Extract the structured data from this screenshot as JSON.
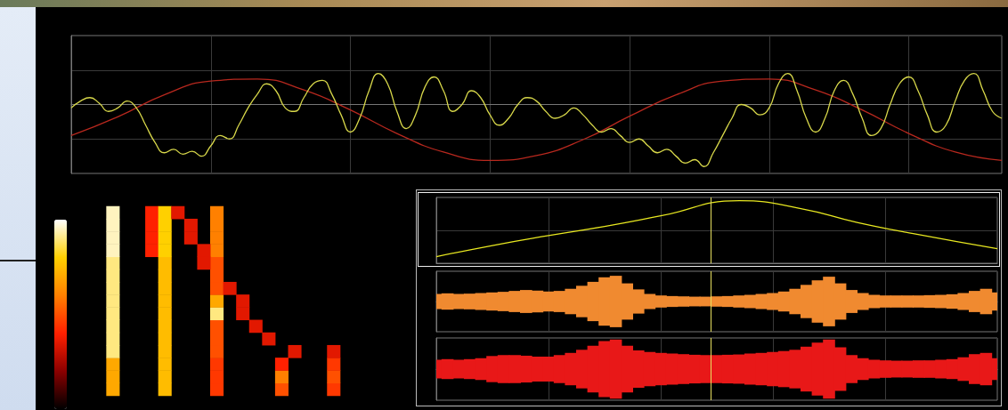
{
  "chart_data": [
    {
      "type": "line",
      "grid": true,
      "tick_labels": false,
      "xlim": [
        0,
        100
      ],
      "xticks": [
        0,
        15,
        30,
        45,
        60,
        75,
        90
      ],
      "ylim": [
        -1,
        1
      ],
      "yticks": [
        -1,
        -0.5,
        0,
        0.5,
        1
      ],
      "series": [
        {
          "color": "#b8281e",
          "x": [
            0,
            5,
            10,
            15,
            20,
            25,
            30,
            35,
            40,
            45,
            50,
            55,
            60,
            65,
            70,
            75,
            80,
            85,
            90,
            95,
            100
          ],
          "values": [
            -0.45,
            -0.18,
            0.14,
            0.34,
            0.37,
            0.21,
            -0.08,
            -0.42,
            -0.69,
            -0.81,
            -0.74,
            -0.51,
            -0.17,
            0.14,
            0.34,
            0.37,
            0.21,
            -0.08,
            -0.42,
            -0.69,
            -0.81
          ]
        },
        {
          "color": "#d8d84a",
          "x": [
            0,
            1,
            2,
            3,
            4,
            5,
            6,
            7,
            8,
            9,
            10,
            11,
            12,
            13,
            14,
            15,
            16,
            17,
            18,
            19,
            20,
            21,
            22,
            23,
            24,
            25,
            26,
            27,
            28,
            29,
            30,
            31,
            32,
            33,
            34,
            35,
            36,
            37,
            38,
            39,
            40,
            41,
            42,
            43,
            44,
            45,
            46,
            47,
            48,
            49,
            50,
            51,
            52,
            53,
            54,
            55,
            56,
            57,
            58,
            59,
            60,
            61,
            62,
            63,
            64,
            65,
            66,
            67,
            68,
            69,
            70,
            71,
            72,
            73,
            74,
            75,
            76,
            77,
            78,
            79,
            80,
            81,
            82,
            83,
            84,
            85,
            86,
            87,
            88,
            89,
            90,
            91,
            92,
            93,
            94,
            95,
            96,
            97,
            98,
            99,
            100
          ],
          "values": [
            -0.05,
            0.05,
            0.1,
            0.02,
            -0.1,
            -0.05,
            0.05,
            -0.05,
            -0.3,
            -0.55,
            -0.7,
            -0.65,
            -0.72,
            -0.68,
            -0.75,
            -0.6,
            -0.45,
            -0.5,
            -0.3,
            -0.05,
            0.15,
            0.3,
            0.2,
            -0.05,
            -0.1,
            0.1,
            0.3,
            0.35,
            0.15,
            -0.15,
            -0.4,
            -0.2,
            0.2,
            0.45,
            0.3,
            -0.1,
            -0.35,
            -0.15,
            0.25,
            0.4,
            0.2,
            -0.1,
            0.0,
            0.2,
            0.1,
            -0.15,
            -0.3,
            -0.2,
            0.0,
            0.1,
            0.05,
            -0.1,
            -0.2,
            -0.15,
            -0.05,
            -0.15,
            -0.3,
            -0.4,
            -0.35,
            -0.45,
            -0.55,
            -0.5,
            -0.6,
            -0.7,
            -0.65,
            -0.75,
            -0.85,
            -0.8,
            -0.9,
            -0.7,
            -0.45,
            -0.2,
            0.0,
            -0.05,
            -0.15,
            -0.05,
            0.3,
            0.45,
            0.2,
            -0.2,
            -0.4,
            -0.2,
            0.2,
            0.35,
            0.15,
            -0.2,
            -0.45,
            -0.35,
            0.0,
            0.3,
            0.4,
            0.2,
            -0.15,
            -0.4,
            -0.3,
            0.05,
            0.35,
            0.45,
            0.2,
            -0.1,
            -0.2
          ]
        }
      ]
    },
    {
      "type": "heatmap",
      "grid": false,
      "tick_labels": false,
      "columns": 24,
      "rows": 15,
      "colorbar": {
        "range": [
          0,
          1
        ]
      },
      "cells": [
        [
          1,
          0,
          0.7
        ],
        [
          1,
          1,
          0.7
        ],
        [
          1,
          2,
          0.7
        ],
        [
          1,
          3,
          0.9
        ],
        [
          1,
          4,
          0.9
        ],
        [
          1,
          5,
          0.9
        ],
        [
          1,
          6,
          0.9
        ],
        [
          1,
          7,
          0.9
        ],
        [
          1,
          8,
          0.9
        ],
        [
          1,
          9,
          0.9
        ],
        [
          1,
          10,
          0.9
        ],
        [
          1,
          11,
          0.95
        ],
        [
          1,
          12,
          0.95
        ],
        [
          1,
          13,
          0.95
        ],
        [
          1,
          14,
          0.95
        ],
        [
          4,
          11,
          0.4
        ],
        [
          4,
          12,
          0.4
        ],
        [
          4,
          13,
          0.4
        ],
        [
          4,
          14,
          0.4
        ],
        [
          5,
          0,
          0.75
        ],
        [
          5,
          1,
          0.75
        ],
        [
          5,
          2,
          0.75
        ],
        [
          5,
          3,
          0.75
        ],
        [
          5,
          4,
          0.75
        ],
        [
          5,
          5,
          0.75
        ],
        [
          5,
          6,
          0.75
        ],
        [
          5,
          7,
          0.75
        ],
        [
          5,
          8,
          0.75
        ],
        [
          5,
          9,
          0.75
        ],
        [
          5,
          10,
          0.75
        ],
        [
          5,
          11,
          0.8
        ],
        [
          5,
          12,
          0.8
        ],
        [
          5,
          13,
          0.8
        ],
        [
          5,
          14,
          0.8
        ],
        [
          9,
          0,
          0.45
        ],
        [
          9,
          1,
          0.45
        ],
        [
          9,
          2,
          0.45
        ],
        [
          9,
          3,
          0.5
        ],
        [
          9,
          4,
          0.5
        ],
        [
          9,
          5,
          0.5
        ],
        [
          9,
          6,
          0.9
        ],
        [
          9,
          7,
          0.7
        ],
        [
          9,
          8,
          0.5
        ],
        [
          9,
          9,
          0.5
        ],
        [
          9,
          10,
          0.5
        ],
        [
          9,
          11,
          0.6
        ],
        [
          9,
          12,
          0.6
        ],
        [
          9,
          13,
          0.6
        ],
        [
          9,
          14,
          0.6
        ],
        [
          14,
          0,
          0.5
        ],
        [
          14,
          1,
          0.6
        ],
        [
          14,
          2,
          0.4
        ],
        [
          18,
          0,
          0.45
        ],
        [
          18,
          1,
          0.5
        ],
        [
          18,
          2,
          0.45
        ],
        [
          18,
          3,
          0.35
        ],
        [
          6,
          14,
          0.35
        ],
        [
          7,
          13,
          0.35
        ],
        [
          7,
          12,
          0.35
        ],
        [
          8,
          11,
          0.35
        ],
        [
          8,
          10,
          0.35
        ],
        [
          10,
          8,
          0.35
        ],
        [
          11,
          7,
          0.35
        ],
        [
          11,
          6,
          0.35
        ],
        [
          12,
          5,
          0.35
        ],
        [
          13,
          4,
          0.35
        ],
        [
          15,
          3,
          0.35
        ]
      ]
    },
    {
      "type": "line",
      "grid": true,
      "tick_labels": false,
      "xlim": [
        0,
        100
      ],
      "xticks": [
        0,
        20,
        40,
        60,
        80,
        100
      ],
      "ylim": [
        0,
        1
      ],
      "yticks": [
        0,
        0.5,
        1
      ],
      "cursor_x": 49,
      "series": [
        {
          "color": "#e8e820",
          "x": [
            0,
            10,
            20,
            30,
            40,
            54,
            65,
            75,
            85,
            100
          ],
          "values": [
            0.1,
            0.27,
            0.42,
            0.56,
            0.72,
            0.95,
            0.83,
            0.62,
            0.45,
            0.22
          ]
        }
      ]
    },
    {
      "type": "envelope",
      "grid": true,
      "tick_labels": false,
      "xlim": [
        0,
        100
      ],
      "xticks": [
        0,
        20,
        40,
        60,
        80,
        100
      ],
      "ylim": [
        -1,
        1
      ],
      "yticks": [
        -1,
        0,
        1
      ],
      "cursor_x": 49,
      "color": "#f08a30",
      "x": [
        0,
        2,
        4,
        6,
        8,
        10,
        12,
        14,
        16,
        18,
        20,
        22,
        24,
        26,
        28,
        30,
        32,
        34,
        36,
        38,
        40,
        42,
        44,
        46,
        48,
        50,
        52,
        54,
        56,
        58,
        60,
        62,
        64,
        66,
        68,
        70,
        72,
        74,
        76,
        78,
        80,
        82,
        84,
        86,
        88,
        90,
        92,
        94,
        96,
        98,
        100
      ],
      "values": [
        0.25,
        0.27,
        0.25,
        0.26,
        0.28,
        0.3,
        0.32,
        0.35,
        0.38,
        0.36,
        0.33,
        0.35,
        0.42,
        0.52,
        0.65,
        0.8,
        0.85,
        0.6,
        0.4,
        0.25,
        0.2,
        0.18,
        0.17,
        0.16,
        0.16,
        0.17,
        0.18,
        0.2,
        0.22,
        0.25,
        0.28,
        0.33,
        0.42,
        0.55,
        0.7,
        0.82,
        0.6,
        0.38,
        0.28,
        0.22,
        0.2,
        0.2,
        0.2,
        0.2,
        0.21,
        0.22,
        0.24,
        0.28,
        0.35,
        0.42,
        0.3
      ]
    },
    {
      "type": "envelope",
      "grid": true,
      "tick_labels": false,
      "xlim": [
        0,
        100
      ],
      "xticks": [
        0,
        20,
        40,
        60,
        80,
        100
      ],
      "ylim": [
        -1,
        1
      ],
      "yticks": [
        -1,
        0,
        1
      ],
      "cursor_x": 49,
      "color": "#e81818",
      "x": [
        0,
        2,
        4,
        6,
        8,
        10,
        12,
        14,
        16,
        18,
        20,
        22,
        24,
        26,
        28,
        30,
        32,
        34,
        36,
        38,
        40,
        42,
        44,
        46,
        48,
        50,
        52,
        54,
        56,
        58,
        60,
        62,
        64,
        66,
        68,
        70,
        72,
        74,
        76,
        78,
        80,
        82,
        84,
        86,
        88,
        90,
        92,
        94,
        96,
        98,
        100
      ],
      "values": [
        0.3,
        0.32,
        0.3,
        0.32,
        0.35,
        0.42,
        0.45,
        0.45,
        0.43,
        0.4,
        0.4,
        0.45,
        0.52,
        0.62,
        0.75,
        0.9,
        0.95,
        0.75,
        0.6,
        0.55,
        0.52,
        0.5,
        0.48,
        0.46,
        0.45,
        0.45,
        0.46,
        0.47,
        0.5,
        0.52,
        0.55,
        0.58,
        0.62,
        0.72,
        0.85,
        0.95,
        0.7,
        0.45,
        0.35,
        0.3,
        0.28,
        0.27,
        0.27,
        0.28,
        0.28,
        0.3,
        0.32,
        0.38,
        0.48,
        0.52,
        0.35
      ]
    }
  ]
}
